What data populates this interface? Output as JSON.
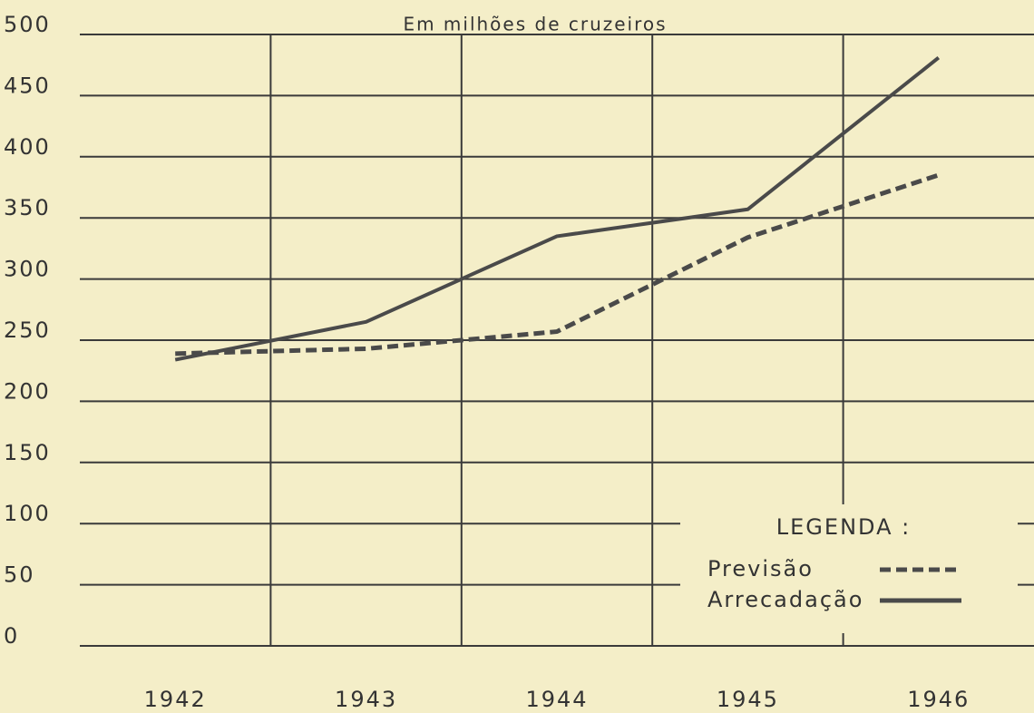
{
  "chart_data": {
    "type": "line",
    "subtitle": "Em milhões de cruzeiros",
    "categories": [
      "1942",
      "1943",
      "1944",
      "1945",
      "1946"
    ],
    "series": [
      {
        "name": "Previsão",
        "color": "#4a4a4a",
        "dash": true,
        "values": [
          239,
          243,
          257,
          334,
          385
        ]
      },
      {
        "name": "Arrecadação",
        "color": "#4a4a4a",
        "dash": false,
        "values": [
          234,
          265,
          335,
          357,
          481
        ]
      }
    ],
    "legend_title": "LEGENDA :",
    "ylim": [
      0,
      500
    ],
    "yticks": [
      0,
      50,
      100,
      150,
      200,
      250,
      300,
      350,
      400,
      450,
      500
    ],
    "grid": true
  }
}
